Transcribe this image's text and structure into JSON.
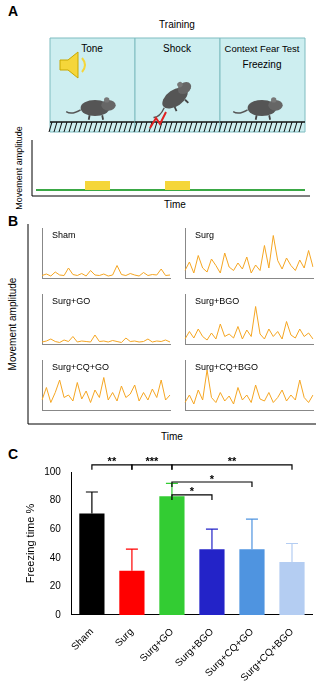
{
  "panel_a": {
    "label": "A",
    "training": "Training",
    "tone": "Tone",
    "shock": "Shock",
    "test": "Context Fear Test",
    "freezing": "Freezing",
    "y_label": "Movement amplitude",
    "x_label": "Time"
  },
  "panel_b": {
    "label": "B",
    "y_label": "Movement amplitude",
    "x_label": "Time"
  },
  "panel_c": {
    "label": "C"
  },
  "chart_data": [
    {
      "type": "line",
      "title": "Sham",
      "color": "#f5a623",
      "tick_labels": false,
      "grid": false,
      "ylim": [
        0,
        10
      ],
      "categories": [
        null,
        null,
        null,
        null,
        null,
        null,
        null,
        null,
        null,
        null,
        null,
        null,
        null,
        null,
        null,
        null,
        null,
        null,
        null,
        null,
        null,
        null,
        null,
        null,
        null,
        null,
        null,
        null,
        null,
        null
      ],
      "values": [
        0.5,
        0.8,
        0.4,
        1.2,
        0.6,
        0.5,
        2.0,
        0.7,
        0.5,
        0.9,
        0.4,
        1.5,
        0.6,
        0.5,
        0.8,
        0.4,
        0.6,
        2.5,
        0.7,
        0.5,
        0.9,
        0.6,
        0.4,
        1.1,
        0.5,
        0.7,
        0.6,
        1.8,
        0.5,
        0.6
      ]
    },
    {
      "type": "line",
      "title": "Surg",
      "color": "#f5a623",
      "tick_labels": false,
      "grid": false,
      "ylim": [
        0,
        10
      ],
      "categories": [
        null,
        null,
        null,
        null,
        null,
        null,
        null,
        null,
        null,
        null,
        null,
        null,
        null,
        null,
        null,
        null,
        null,
        null,
        null,
        null,
        null,
        null,
        null,
        null,
        null,
        null,
        null,
        null,
        null,
        null
      ],
      "values": [
        1.5,
        3.2,
        1.0,
        4.5,
        2.0,
        1.2,
        3.8,
        2.5,
        1.0,
        5.0,
        2.2,
        1.5,
        3.0,
        1.8,
        4.2,
        1.0,
        2.6,
        1.5,
        6.5,
        2.0,
        8.5,
        3.5,
        1.8,
        4.0,
        2.5,
        1.5,
        3.6,
        2.0,
        5.5,
        2.2
      ]
    },
    {
      "type": "line",
      "title": "Surg+GO",
      "color": "#f5a623",
      "tick_labels": false,
      "grid": false,
      "ylim": [
        0,
        10
      ],
      "categories": [
        null,
        null,
        null,
        null,
        null,
        null,
        null,
        null,
        null,
        null,
        null,
        null,
        null,
        null,
        null,
        null,
        null,
        null,
        null,
        null,
        null,
        null,
        null,
        null,
        null,
        null,
        null,
        null,
        null,
        null
      ],
      "values": [
        0.4,
        0.6,
        1.0,
        0.5,
        0.3,
        0.8,
        0.5,
        1.5,
        0.4,
        0.6,
        0.5,
        0.4,
        1.8,
        0.5,
        0.6,
        0.4,
        0.7,
        0.5,
        0.3,
        1.2,
        0.5,
        0.6,
        0.4,
        0.5,
        1.0,
        0.4,
        0.6,
        0.5,
        0.8,
        0.4
      ]
    },
    {
      "type": "line",
      "title": "Surg+BGO",
      "color": "#f5a623",
      "tick_labels": false,
      "grid": false,
      "ylim": [
        0,
        10
      ],
      "categories": [
        null,
        null,
        null,
        null,
        null,
        null,
        null,
        null,
        null,
        null,
        null,
        null,
        null,
        null,
        null,
        null,
        null,
        null,
        null,
        null,
        null,
        null,
        null,
        null,
        null,
        null,
        null,
        null,
        null,
        null
      ],
      "values": [
        1.0,
        2.5,
        1.2,
        3.0,
        1.5,
        0.8,
        2.2,
        1.0,
        4.0,
        1.5,
        2.0,
        1.2,
        3.5,
        1.0,
        2.8,
        1.5,
        7.5,
        2.0,
        1.0,
        3.0,
        1.5,
        2.5,
        1.0,
        4.5,
        1.8,
        1.2,
        3.0,
        1.5,
        2.2,
        1.0
      ]
    },
    {
      "type": "line",
      "title": "Surg+CQ+GO",
      "color": "#f5a623",
      "tick_labels": false,
      "grid": false,
      "ylim": [
        0,
        10
      ],
      "categories": [
        null,
        null,
        null,
        null,
        null,
        null,
        null,
        null,
        null,
        null,
        null,
        null,
        null,
        null,
        null,
        null,
        null,
        null,
        null,
        null,
        null,
        null,
        null,
        null,
        null,
        null,
        null,
        null,
        null,
        null
      ],
      "values": [
        2.0,
        4.5,
        1.5,
        3.5,
        6.0,
        2.5,
        3.0,
        1.8,
        5.5,
        2.2,
        3.8,
        1.5,
        4.0,
        2.5,
        6.5,
        2.0,
        3.5,
        1.8,
        4.8,
        2.5,
        3.2,
        5.0,
        1.8,
        3.5,
        2.0,
        4.2,
        2.5,
        6.0,
        2.0,
        3.0
      ]
    },
    {
      "type": "line",
      "title": "Surg+CQ+BGO",
      "color": "#f5a623",
      "tick_labels": false,
      "grid": false,
      "ylim": [
        0,
        10
      ],
      "categories": [
        null,
        null,
        null,
        null,
        null,
        null,
        null,
        null,
        null,
        null,
        null,
        null,
        null,
        null,
        null,
        null,
        null,
        null,
        null,
        null,
        null,
        null,
        null,
        null,
        null,
        null,
        null,
        null,
        null,
        null
      ],
      "values": [
        1.5,
        3.0,
        1.2,
        4.0,
        2.0,
        8.0,
        2.5,
        1.5,
        3.5,
        1.8,
        2.8,
        1.2,
        4.5,
        2.0,
        3.0,
        1.5,
        5.0,
        2.2,
        1.8,
        3.5,
        1.5,
        2.5,
        4.0,
        1.8,
        3.0,
        2.0,
        6.0,
        2.5,
        1.5,
        3.0
      ]
    },
    {
      "type": "bar",
      "y_label": "Freezing time %",
      "categories": [
        "Sham",
        "Surg",
        "Surg+GO",
        "Surg+BGO",
        "Surg+CQ+GO",
        "Surg+CQ+BGO"
      ],
      "values": [
        71,
        31,
        83,
        46,
        46,
        37
      ],
      "errors": [
        15,
        15,
        9,
        14,
        21,
        13
      ],
      "colors": [
        "#000000",
        "#ff0000",
        "#33cc33",
        "#2323c8",
        "#4f94e0",
        "#b4cdf2"
      ],
      "ylim": [
        0,
        100
      ],
      "yticks": [
        0,
        20,
        40,
        60,
        80,
        100
      ],
      "grid": false,
      "significance": [
        {
          "from": "Sham",
          "to": "Surg",
          "y": 105,
          "label": "**"
        },
        {
          "from": "Surg",
          "to": "Surg+GO",
          "y": 105,
          "label": "***"
        },
        {
          "from": "Surg+GO",
          "to": "Surg+CQ+BGO",
          "y": 105,
          "label": "**"
        },
        {
          "from": "Surg+GO",
          "to": "Surg+CQ+GO",
          "y": 93,
          "label": "*"
        },
        {
          "from": "Surg+GO",
          "to": "Surg+BGO",
          "y": 84,
          "label": "*"
        }
      ]
    }
  ]
}
